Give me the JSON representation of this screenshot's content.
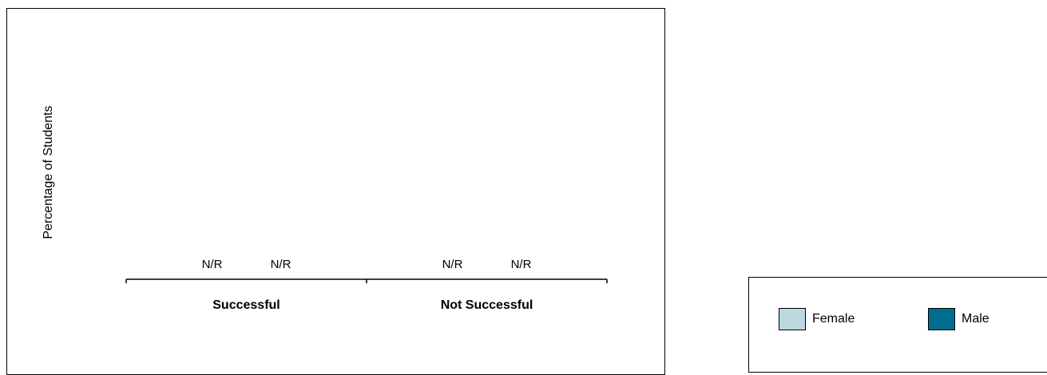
{
  "chart_data": {
    "type": "bar",
    "ylabel": "Percentage of Students",
    "categories": [
      "Successful",
      "Not Successful"
    ],
    "series": [
      {
        "name": "Female",
        "color": "#bcd9e2",
        "values": [
          null,
          null
        ],
        "labels": [
          "N/R",
          "N/R"
        ]
      },
      {
        "name": "Male",
        "color": "#006d8f",
        "values": [
          null,
          null
        ],
        "labels": [
          "N/R",
          "N/R"
        ]
      }
    ],
    "legend_position": "bottom-right",
    "grid": false
  }
}
